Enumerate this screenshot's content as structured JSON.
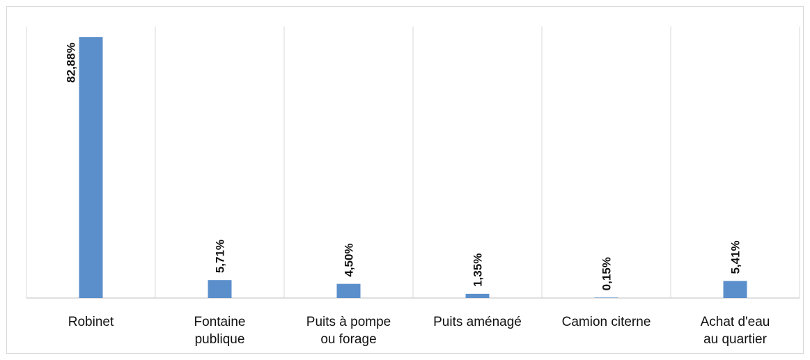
{
  "chart_data": {
    "type": "bar",
    "categories": [
      [
        "Robinet"
      ],
      [
        "Fontaine",
        "publique"
      ],
      [
        "Puits à pompe",
        "ou forage"
      ],
      [
        "Puits aménagé"
      ],
      [
        "Camion citerne"
      ],
      [
        "Achat d'eau",
        "au quartier"
      ]
    ],
    "values": [
      82.88,
      5.71,
      4.5,
      1.35,
      0.15,
      5.41
    ],
    "data_labels": [
      "82,88%",
      "5,71%",
      "4,50%",
      "1,35%",
      "0,15%",
      "5,41%"
    ],
    "ylim": [
      0,
      88
    ],
    "grid": "vertical separators",
    "colors": {
      "bar": "#5b8fcc",
      "separator": "#d9d9d9",
      "axis": "#bfbfbf"
    }
  }
}
